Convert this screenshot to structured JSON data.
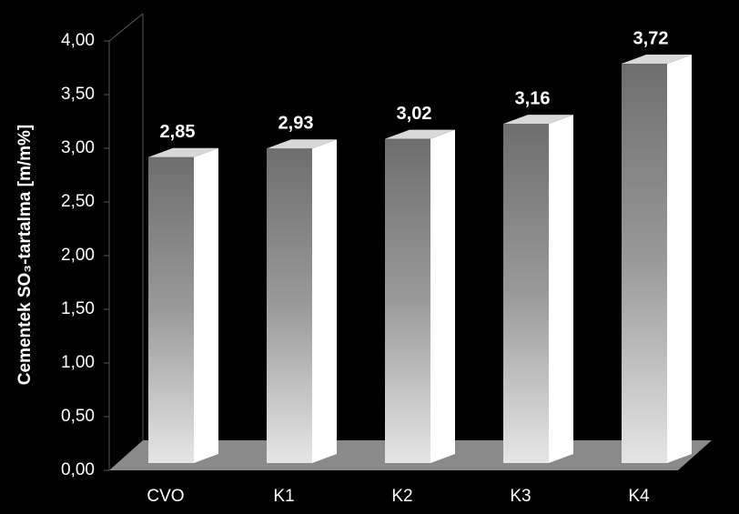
{
  "chart_data": {
    "type": "bar3d",
    "y_label": "Cementek SO₃-tartalma [m/m%]",
    "categories": [
      "CVO",
      "K1",
      "K2",
      "K3",
      "K4"
    ],
    "values": [
      2.85,
      2.93,
      3.02,
      3.16,
      3.72
    ],
    "value_labels": [
      "2,85",
      "2,93",
      "3,02",
      "3,16",
      "3,72"
    ],
    "ylim": [
      0,
      4
    ],
    "yticks": [
      {
        "value": 0,
        "label": "0,00"
      },
      {
        "value": 0.5,
        "label": "0,50"
      },
      {
        "value": 1,
        "label": "1,00"
      },
      {
        "value": 1.5,
        "label": "1,50"
      },
      {
        "value": 2,
        "label": "2,00"
      },
      {
        "value": 2.5,
        "label": "2,50"
      },
      {
        "value": 3,
        "label": "3,00"
      },
      {
        "value": 3.5,
        "label": "3,50"
      },
      {
        "value": 4,
        "label": "4,00"
      }
    ],
    "color": "#ffffff"
  }
}
